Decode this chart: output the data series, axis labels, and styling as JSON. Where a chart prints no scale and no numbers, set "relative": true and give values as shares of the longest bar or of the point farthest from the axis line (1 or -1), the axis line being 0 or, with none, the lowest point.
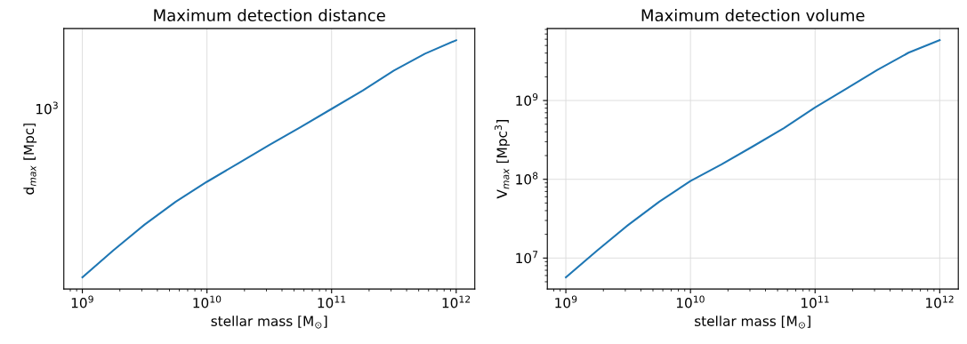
{
  "chart_data": [
    {
      "type": "line",
      "title": "Maximum detection distance",
      "xlabel": "stellar mass [M$_{⊙}$]",
      "ylabel": "d$_{max}$ [Mpc]",
      "log": "x",
      "grid": "x",
      "relative": true,
      "annotations": [
        "10$^{3}$"
      ],
      "x": [
        1000000000.0,
        1778000000.0,
        3162000000.0,
        5623000000.0,
        10000000000.0,
        17780000000.0,
        31620000000.0,
        56230000000.0,
        100000000000.0,
        177800000000.0,
        316200000000.0,
        562300000000.0,
        1000000000000.0
      ],
      "series": [
        {
          "color": "#1f77b4",
          "values": [
            0.047,
            0.156,
            0.259,
            0.351,
            0.431,
            0.505,
            0.579,
            0.65,
            0.724,
            0.798,
            0.878,
            0.946,
            1
          ]
        }
      ],
      "xlim": [
        710000000.0,
        1410000000000.0
      ],
      "xticks": [
        {
          "value": 1000000000.0,
          "label": "10$^{9}$"
        },
        {
          "value": 10000000000.0,
          "label": "10$^{10}$"
        },
        {
          "value": 100000000000.0,
          "label": "10$^{11}$"
        },
        {
          "value": 1000000000000.0,
          "label": "10$^{12}$"
        }
      ]
    },
    {
      "type": "line",
      "title": "Maximum detection volume",
      "xlabel": "stellar mass [M$_{⊙}$]",
      "ylabel": "V$_{max}$ [Mpc$^{3}$]",
      "log": "xy",
      "grid": true,
      "x": [
        1000000000.0,
        1778000000.0,
        3162000000.0,
        5623000000.0,
        10000000000.0,
        17780000000.0,
        31620000000.0,
        56230000000.0,
        100000000000.0,
        177800000000.0,
        316200000000.0,
        562300000000.0,
        1000000000000.0
      ],
      "series": [
        {
          "color": "#1f77b4",
          "values": [
            5700000.0,
            12400000.0,
            26300000.0,
            52000000.0,
            95000000.0,
            155000000.0,
            261000000.0,
            447000000.0,
            815000000.0,
            1410000000.0,
            2450000000.0,
            4050000000.0,
            5850000000.0
          ]
        }
      ],
      "xlim": [
        710000000.0,
        1410000000000.0
      ],
      "ylim": [
        4050000.0,
        8200000000.0
      ],
      "xticks": [
        {
          "value": 1000000000.0,
          "label": "10$^{9}$"
        },
        {
          "value": 10000000000.0,
          "label": "10$^{10}$"
        },
        {
          "value": 100000000000.0,
          "label": "10$^{11}$"
        },
        {
          "value": 1000000000000.0,
          "label": "10$^{12}$"
        }
      ],
      "yticks": [
        {
          "value": 10000000.0,
          "label": "10$^{7}$"
        },
        {
          "value": 100000000.0,
          "label": "10$^{8}$"
        },
        {
          "value": 1000000000.0,
          "label": "10$^{9}$"
        }
      ]
    }
  ]
}
